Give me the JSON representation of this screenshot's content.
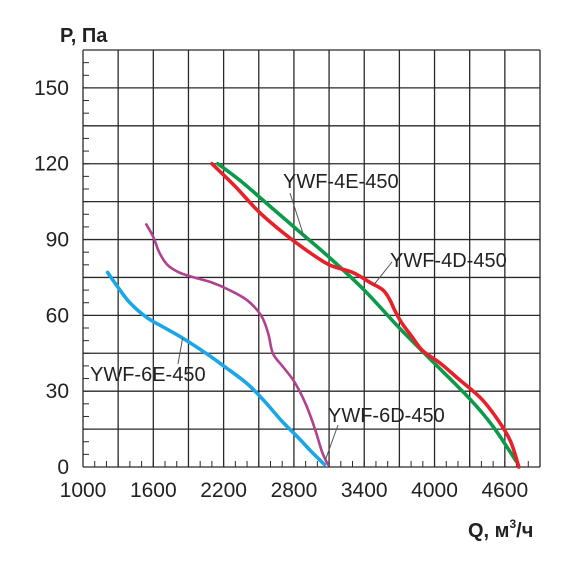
{
  "chart_data": {
    "type": "line",
    "title": "",
    "xlabel": "Q, м",
    "xlabel_superscript": "3",
    "xlabel_suffix": "/ч",
    "ylabel": "P, Па",
    "xlim": [
      1000,
      4900
    ],
    "ylim": [
      0,
      165
    ],
    "x_ticks": [
      1000,
      1600,
      2200,
      2800,
      3400,
      4000,
      4600
    ],
    "x_tick_labels": [
      "1000",
      "1600",
      "2200",
      "2800",
      "3400",
      "4000",
      "4600"
    ],
    "x_grid": [
      1000,
      1300,
      1600,
      1900,
      2200,
      2500,
      2800,
      3100,
      3400,
      3700,
      4000,
      4300,
      4600,
      4900
    ],
    "y_ticks": [
      0,
      30,
      60,
      90,
      120,
      150
    ],
    "y_tick_labels": [
      "0",
      "30",
      "60",
      "90",
      "120",
      "150"
    ],
    "y_grid": [
      0,
      15,
      30,
      45,
      60,
      75,
      90,
      105,
      120,
      135,
      150,
      165
    ],
    "grid": true,
    "legend": "none",
    "series": [
      {
        "name": "YWF-4E-450",
        "color": "#0b9a4a",
        "points": [
          [
            2150,
            120
          ],
          [
            2350,
            113
          ],
          [
            2600,
            103
          ],
          [
            2850,
            93
          ],
          [
            3100,
            83
          ],
          [
            3400,
            70
          ],
          [
            3700,
            55
          ],
          [
            4000,
            41
          ],
          [
            4300,
            27
          ],
          [
            4500,
            16
          ],
          [
            4700,
            2
          ]
        ]
      },
      {
        "name": "YWF-4D-450",
        "color": "#e8202a",
        "points": [
          [
            2100,
            120
          ],
          [
            2300,
            111
          ],
          [
            2500,
            101
          ],
          [
            2700,
            93
          ],
          [
            2900,
            86
          ],
          [
            3100,
            80
          ],
          [
            3300,
            77
          ],
          [
            3450,
            73
          ],
          [
            3560,
            70
          ],
          [
            3620,
            66
          ],
          [
            3660,
            62
          ],
          [
            3720,
            57
          ],
          [
            3800,
            52
          ],
          [
            3900,
            46
          ],
          [
            4050,
            41
          ],
          [
            4200,
            35
          ],
          [
            4400,
            27
          ],
          [
            4550,
            18
          ],
          [
            4650,
            10
          ],
          [
            4720,
            0
          ]
        ]
      },
      {
        "name": "YWF-6E-450",
        "color": "#1ba6e6",
        "points": [
          [
            1210,
            77
          ],
          [
            1300,
            71
          ],
          [
            1400,
            65
          ],
          [
            1550,
            59
          ],
          [
            1700,
            55
          ],
          [
            1850,
            51
          ],
          [
            2050,
            45
          ],
          [
            2200,
            40
          ],
          [
            2400,
            33
          ],
          [
            2550,
            26
          ],
          [
            2700,
            18
          ],
          [
            2850,
            11
          ],
          [
            2950,
            6
          ],
          [
            3060,
            1
          ]
        ]
      },
      {
        "name": "YWF-6D-450",
        "color": "#b0418f",
        "points": [
          [
            1540,
            96
          ],
          [
            1600,
            91
          ],
          [
            1650,
            85
          ],
          [
            1720,
            80
          ],
          [
            1820,
            77
          ],
          [
            1950,
            75
          ],
          [
            2100,
            73
          ],
          [
            2250,
            70
          ],
          [
            2400,
            66
          ],
          [
            2520,
            60
          ],
          [
            2580,
            53
          ],
          [
            2620,
            45
          ],
          [
            2700,
            40
          ],
          [
            2800,
            34
          ],
          [
            2900,
            25
          ],
          [
            2980,
            15
          ],
          [
            3040,
            6
          ],
          [
            3090,
            1
          ]
        ]
      }
    ],
    "annotations": [
      {
        "series": "YWF-4E-450",
        "text": "YWF-4E-450"
      },
      {
        "series": "YWF-4D-450",
        "text": "YWF-4D-450"
      },
      {
        "series": "YWF-6E-450",
        "text": "YWF-6E-450"
      },
      {
        "series": "YWF-6D-450",
        "text": "YWF-6D-450"
      }
    ]
  }
}
